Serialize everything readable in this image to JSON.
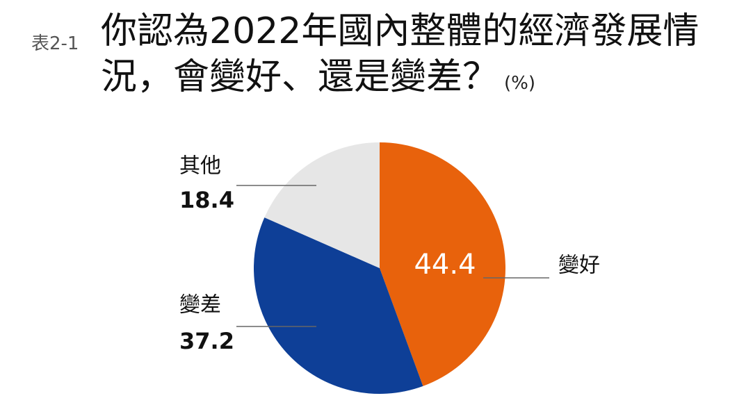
{
  "chart_data": {
    "type": "pie",
    "figure_label": "表2-1",
    "title": "你認為2022年國內整體的經濟發展情況，會變好、還是變差？",
    "unit": "(%)",
    "categories": [
      "變好",
      "變差",
      "其他"
    ],
    "values": [
      44.4,
      37.2,
      18.4
    ],
    "colors": [
      "#e8620c",
      "#0e3f97",
      "#e6e6e6"
    ]
  }
}
